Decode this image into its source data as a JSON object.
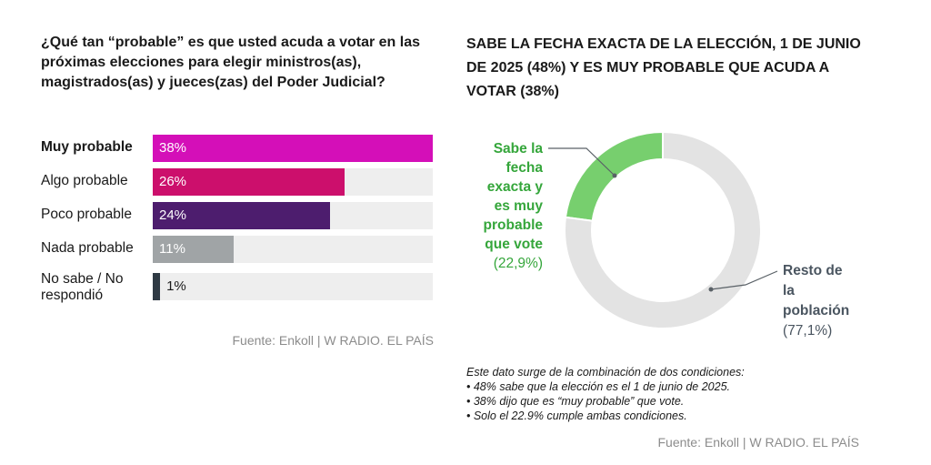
{
  "colors": {
    "muy": "#d40fb8",
    "algo": "#cc0f6c",
    "poco": "#4d1d6e",
    "nada": "#a0a4a6",
    "nosabe": "#2f3a44",
    "track": "#eeeeee",
    "green": "#77cf6e",
    "donut_rest": "#e3e3e3",
    "green_text": "#35a63b"
  },
  "chart_data": [
    {
      "type": "bar",
      "orientation": "horizontal",
      "title": "¿Qué tan “probable” es que usted acuda a votar en las próximas elecciones para elegir ministros(as), magistrados(as) y jueces(zas) del Poder Judicial?",
      "categories": [
        "Muy probable",
        "Algo probable",
        "Poco probable",
        "Nada probable",
        "No sabe / No respondió"
      ],
      "values": [
        38,
        26,
        24,
        11,
        1
      ],
      "value_labels": [
        "38%",
        "26%",
        "24%",
        "11%",
        "1%"
      ],
      "xlim": [
        0,
        38
      ],
      "source": "Fuente: Enkoll | W RADIO. EL PAÍS"
    },
    {
      "type": "pie",
      "variant": "donut",
      "title": "SABE LA FECHA EXACTA DE LA ELECCIÓN, 1 DE JUNIO DE 2025 (48%) Y ES MUY PROBABLE QUE ACUDA A VOTAR (38%)",
      "slices": [
        {
          "label_lines": [
            "Sabe la",
            "fecha",
            "exacta y",
            "es muy",
            "probable",
            "que vote"
          ],
          "value": 22.9,
          "value_label": "(22,9%)"
        },
        {
          "label_lines": [
            "Resto de",
            "la",
            "población"
          ],
          "value": 77.1,
          "value_label": "(77,1%)"
        }
      ],
      "note_lines": [
        "Este dato surge de la combinación de dos condiciones:",
        "• 48% sabe que la elección es el 1 de junio de 2025.",
        "• 38% dijo que es “muy probable” que vote.",
        "• Solo el 22.9% cumple ambas condiciones."
      ],
      "source": "Fuente: Enkoll | W RADIO. EL PAÍS"
    }
  ]
}
